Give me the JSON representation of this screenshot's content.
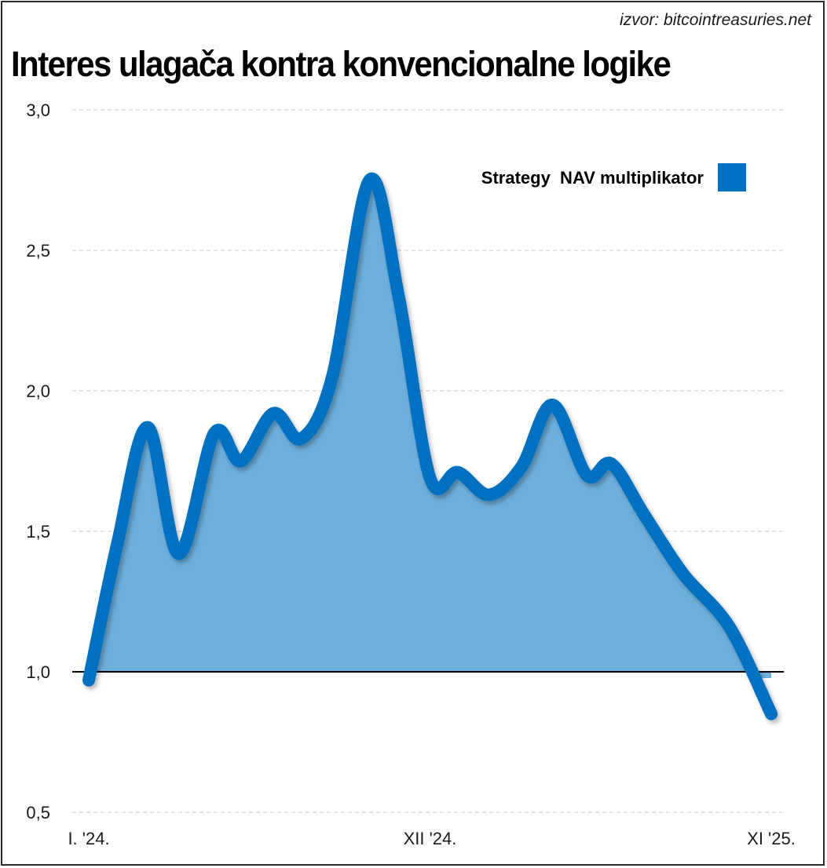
{
  "source_note": "izvor: bitcointreasuries.net",
  "chart_data": {
    "type": "area",
    "title": "Interes ulagača kontra konvencionalne logike",
    "xlabel": "",
    "ylabel": "",
    "ylim": [
      0.5,
      3.0
    ],
    "baseline": 1.0,
    "grid": true,
    "legend_position": "top-right",
    "yticks": [
      {
        "value": 3.0,
        "label": "3,0"
      },
      {
        "value": 2.5,
        "label": "2,5"
      },
      {
        "value": 2.0,
        "label": "2,0"
      },
      {
        "value": 1.5,
        "label": "1,5"
      },
      {
        "value": 1.0,
        "label": "1,0"
      },
      {
        "value": 0.5,
        "label": "0,5"
      }
    ],
    "xlim": [
      0,
      22
    ],
    "xticks": [
      {
        "value": 0,
        "label": "I. '24."
      },
      {
        "value": 11,
        "label": "XII '24."
      },
      {
        "value": 22,
        "label": "XI '25."
      }
    ],
    "series": [
      {
        "name": "Strategy  NAV multiplikator",
        "line_color": "#0070C0",
        "fill_color": "#6DAEDB",
        "x": [
          0,
          0.93,
          1.9,
          2.9,
          4.05,
          4.9,
          5.95,
          6.85,
          7.85,
          9.05,
          10.0,
          11.0,
          11.9,
          12.9,
          13.95,
          14.95,
          16.05,
          16.85,
          17.9,
          19.15,
          20.65,
          22.0
        ],
        "values": [
          0.97,
          1.46,
          1.87,
          1.42,
          1.85,
          1.75,
          1.92,
          1.83,
          2.05,
          2.75,
          2.33,
          1.69,
          1.71,
          1.63,
          1.73,
          1.95,
          1.7,
          1.74,
          1.56,
          1.35,
          1.16,
          0.85
        ]
      }
    ]
  }
}
